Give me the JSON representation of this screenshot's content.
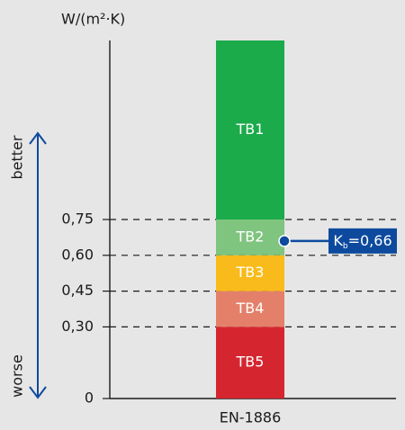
{
  "chart_data": {
    "type": "bar",
    "stacked": true,
    "y_label": "W/(m²·K)",
    "better_label": "better",
    "worse_label": "worse",
    "categories": [
      "EN-1886"
    ],
    "series": [
      {
        "name": "TB5",
        "color": "#d52630",
        "values": [
          0.3
        ]
      },
      {
        "name": "TB4",
        "color": "#e4806a",
        "values": [
          0.15
        ]
      },
      {
        "name": "TB3",
        "color": "#f9bb1b",
        "values": [
          0.15
        ]
      },
      {
        "name": "TB2",
        "color": "#7fc47f",
        "values": [
          0.15
        ]
      },
      {
        "name": "TB1",
        "color": "#1bab4b",
        "values": [
          0.75
        ]
      }
    ],
    "ylim": [
      0,
      1.5
    ],
    "yticks": [
      0,
      {
        "value": 0.3,
        "label": "0,30"
      },
      {
        "value": 0.45,
        "label": "0,45"
      },
      {
        "value": 0.6,
        "label": "0,60"
      },
      {
        "value": 0.75,
        "label": "0,75"
      }
    ],
    "grid": true,
    "marker": {
      "value": 0.66,
      "label_parts": [
        "K",
        "b",
        "=0,66"
      ],
      "color": "#0d4a9e"
    }
  }
}
